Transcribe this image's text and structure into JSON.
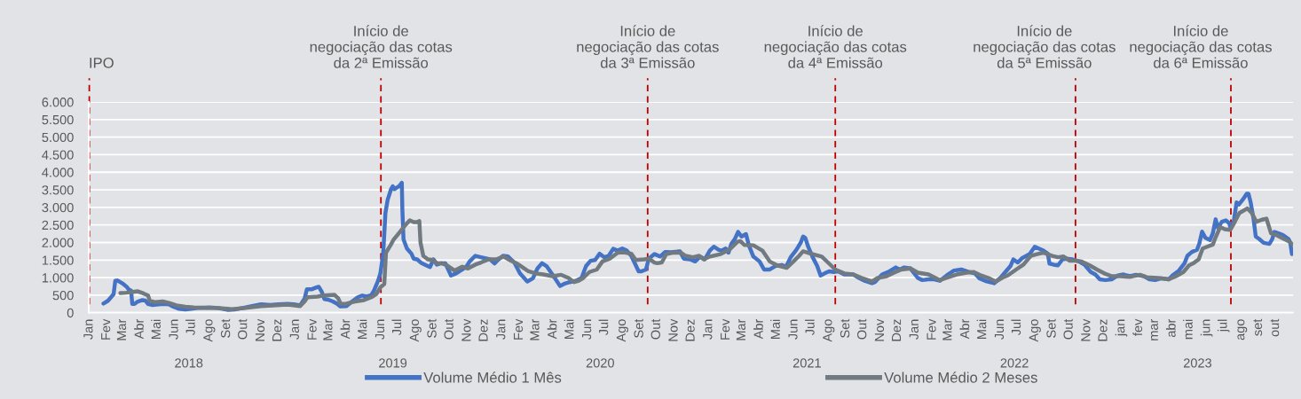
{
  "chart_data": {
    "type": "line",
    "grid": "y",
    "legend": "bottom",
    "line_style": "solid",
    "xlim": [
      "2017-12-31",
      "2023-11-01"
    ],
    "ylim": [
      0,
      6000
    ],
    "yticks": [
      0,
      500,
      {
        "value": 1000,
        "label": "1.000"
      },
      {
        "value": 1500,
        "label": "1.500"
      },
      {
        "value": 2000,
        "label": "2.000"
      },
      {
        "value": 2500,
        "label": "2.500"
      },
      {
        "value": 3000,
        "label": "3.000"
      },
      {
        "value": 3500,
        "label": "3.500"
      },
      {
        "value": 4000,
        "label": "4.000"
      },
      {
        "value": 4500,
        "label": "4.500"
      },
      {
        "value": 5000,
        "label": "5.000"
      },
      {
        "value": 5500,
        "label": "5.500"
      },
      {
        "value": 6000,
        "label": "6.000"
      }
    ],
    "xticks": [
      {
        "value": "2018-01-01",
        "label": "Jan"
      },
      {
        "value": "2018-02-01",
        "label": "Fev"
      },
      {
        "value": "2018-03-01",
        "label": "Mar"
      },
      {
        "value": "2018-04-01",
        "label": "Abr"
      },
      {
        "value": "2018-05-01",
        "label": "Mai"
      },
      {
        "value": "2018-06-01",
        "label": "Jun"
      },
      {
        "value": "2018-07-01",
        "label": "Jul"
      },
      {
        "value": "2018-08-01",
        "label": "Ago"
      },
      {
        "value": "2018-09-01",
        "label": "Set"
      },
      {
        "value": "2018-10-01",
        "label": "Out"
      },
      {
        "value": "2018-11-01",
        "label": "Nov"
      },
      {
        "value": "2018-12-01",
        "label": "Dez"
      },
      {
        "value": "2019-01-01",
        "label": "Jan"
      },
      {
        "value": "2019-02-01",
        "label": "Fev"
      },
      {
        "value": "2019-03-01",
        "label": "Mar"
      },
      {
        "value": "2019-04-01",
        "label": "Abr"
      },
      {
        "value": "2019-05-01",
        "label": "Mai"
      },
      {
        "value": "2019-06-01",
        "label": "Jun"
      },
      {
        "value": "2019-07-01",
        "label": "Jul"
      },
      {
        "value": "2019-08-01",
        "label": "Ago"
      },
      {
        "value": "2019-09-01",
        "label": "Set"
      },
      {
        "value": "2019-10-01",
        "label": "Out"
      },
      {
        "value": "2019-11-01",
        "label": "Nov"
      },
      {
        "value": "2019-12-01",
        "label": "Dez"
      },
      {
        "value": "2020-01-01",
        "label": "Jan"
      },
      {
        "value": "2020-02-01",
        "label": "Fev"
      },
      {
        "value": "2020-03-01",
        "label": "Mar"
      },
      {
        "value": "2020-04-01",
        "label": "Abr"
      },
      {
        "value": "2020-05-01",
        "label": "Mai"
      },
      {
        "value": "2020-06-01",
        "label": "Jun"
      },
      {
        "value": "2020-07-01",
        "label": "Jul"
      },
      {
        "value": "2020-08-01",
        "label": "Ago"
      },
      {
        "value": "2020-09-01",
        "label": "Set"
      },
      {
        "value": "2020-10-01",
        "label": "Out"
      },
      {
        "value": "2020-11-01",
        "label": "Nov"
      },
      {
        "value": "2020-12-01",
        "label": "Dez"
      },
      {
        "value": "2021-01-01",
        "label": "Jan"
      },
      {
        "value": "2021-02-01",
        "label": "Fev"
      },
      {
        "value": "2021-03-01",
        "label": "Mar"
      },
      {
        "value": "2021-04-01",
        "label": "Abr"
      },
      {
        "value": "2021-05-01",
        "label": "Mai"
      },
      {
        "value": "2021-06-01",
        "label": "Jun"
      },
      {
        "value": "2021-07-01",
        "label": "Jul"
      },
      {
        "value": "2021-08-01",
        "label": "Ago"
      },
      {
        "value": "2021-09-01",
        "label": "Set"
      },
      {
        "value": "2021-10-01",
        "label": "Out"
      },
      {
        "value": "2021-11-01",
        "label": "Nov"
      },
      {
        "value": "2021-12-01",
        "label": "Dez"
      },
      {
        "value": "2022-01-01",
        "label": "Jan"
      },
      {
        "value": "2022-02-01",
        "label": "Fev"
      },
      {
        "value": "2022-03-01",
        "label": "Mar"
      },
      {
        "value": "2022-04-01",
        "label": "Abr"
      },
      {
        "value": "2022-05-01",
        "label": "Mai"
      },
      {
        "value": "2022-06-01",
        "label": "Jun"
      },
      {
        "value": "2022-07-01",
        "label": "Jul"
      },
      {
        "value": "2022-08-01",
        "label": "Ago"
      },
      {
        "value": "2022-09-01",
        "label": "Set"
      },
      {
        "value": "2022-10-01",
        "label": "Out"
      },
      {
        "value": "2022-11-01",
        "label": "Nov"
      },
      {
        "value": "2022-12-01",
        "label": "Dez"
      },
      {
        "value": "2023-01-01",
        "label": "jan"
      },
      {
        "value": "2023-02-01",
        "label": "fev"
      },
      {
        "value": "2023-03-01",
        "label": "mar"
      },
      {
        "value": "2023-04-01",
        "label": "abr"
      },
      {
        "value": "2023-05-01",
        "label": "mai"
      },
      {
        "value": "2023-06-01",
        "label": "jun"
      },
      {
        "value": "2023-07-01",
        "label": "jul"
      },
      {
        "value": "2023-08-01",
        "label": "ago"
      },
      {
        "value": "2023-09-01",
        "label": "set"
      },
      {
        "value": "2023-10-01",
        "label": "out"
      }
    ],
    "x2lim": [
      "2017-12-31",
      "2023-11-01"
    ],
    "x2ticks": [
      {
        "value": "2018-06-26",
        "label": "2018"
      },
      {
        "value": "2019-06-22",
        "label": "2019"
      },
      {
        "value": "2020-06-23",
        "label": "2020"
      },
      {
        "value": "2021-06-24",
        "label": "2021"
      },
      {
        "value": "2022-06-26",
        "label": "2022"
      },
      {
        "value": "2023-05-16",
        "label": "2023"
      }
    ],
    "ref_lines": [
      {
        "axis": "x",
        "value": "2018-01-01",
        "label": "IPO",
        "color": "#c00000",
        "line_style": "dashed"
      },
      {
        "axis": "x",
        "value": "2019-06-01",
        "label": "Início de\nnegociação das cotas\nda 2ª Emissão",
        "color": "#c00000",
        "line_style": "dashed"
      },
      {
        "axis": "x",
        "value": "2020-09-15",
        "label": "Início de\nnegociação das cotas\nda 3ª Emissão",
        "color": "#c00000",
        "line_style": "dashed"
      },
      {
        "axis": "x",
        "value": "2021-08-13",
        "label": "Início de\nnegociação das cotas\nda 4ª Emissão",
        "color": "#c00000",
        "line_style": "dashed"
      },
      {
        "axis": "x",
        "value": "2022-10-12",
        "label": "Início de\nnegociação das cotas\nda 5ª Emissão",
        "color": "#c00000",
        "line_style": "dashed"
      },
      {
        "axis": "x",
        "value": "2023-07-14",
        "label": "Início de\nnegociação das cotas\nda 6ª Emissão",
        "color": "#c00000",
        "line_style": "dashed"
      }
    ],
    "series": [
      {
        "name": "Volume Médio 1 Mês",
        "color": "#4472c4",
        "x": [
          "2018-01-26",
          "2018-02-03",
          "2018-02-13",
          "2018-02-16",
          "2018-02-20",
          "2018-03-02",
          "2018-03-08",
          "2018-03-12",
          "2018-03-16",
          "2018-03-18",
          "2018-03-22",
          "2018-03-28",
          "2018-04-05",
          "2018-04-10",
          "2018-04-15",
          "2018-04-23",
          "2018-05-03",
          "2018-05-14",
          "2018-05-22",
          "2018-05-30",
          "2018-06-09",
          "2018-06-20",
          "2018-06-30",
          "2018-07-16",
          "2018-08-01",
          "2018-08-14",
          "2018-09-04",
          "2018-09-15",
          "2018-10-01",
          "2018-10-16",
          "2018-11-01",
          "2018-11-17",
          "2018-12-02",
          "2018-12-18",
          "2018-12-29",
          "2019-01-09",
          "2019-01-17",
          "2019-01-21",
          "2019-01-30",
          "2019-02-07",
          "2019-02-11",
          "2019-02-16",
          "2019-02-21",
          "2019-02-28",
          "2019-03-08",
          "2019-03-16",
          "2019-03-21",
          "2019-04-01",
          "2019-04-11",
          "2019-04-21",
          "2019-04-29",
          "2019-05-07",
          "2019-05-15",
          "2019-05-20",
          "2019-05-27",
          "2019-05-31",
          "2019-06-05",
          "2019-06-09",
          "2019-06-13",
          "2019-06-19",
          "2019-06-22",
          "2019-06-25",
          "2019-06-29",
          "2019-07-03",
          "2019-07-08",
          "2019-07-09",
          "2019-07-11",
          "2019-07-17",
          "2019-07-25",
          "2019-07-29",
          "2019-08-04",
          "2019-08-12",
          "2019-08-20",
          "2019-08-27",
          "2019-09-02",
          "2019-09-08",
          "2019-09-16",
          "2019-09-23",
          "2019-10-03",
          "2019-10-12",
          "2019-10-23",
          "2019-10-31",
          "2019-11-05",
          "2019-11-15",
          "2019-11-25",
          "2019-12-11",
          "2019-12-19",
          "2019-12-25",
          "2020-01-03",
          "2020-01-12",
          "2020-01-23",
          "2020-02-02",
          "2020-02-15",
          "2020-02-25",
          "2020-03-04",
          "2020-03-12",
          "2020-03-20",
          "2020-03-31",
          "2020-04-13",
          "2020-04-20",
          "2020-04-30",
          "2020-05-11",
          "2020-05-21",
          "2020-05-29",
          "2020-06-06",
          "2020-06-14",
          "2020-06-22",
          "2020-06-30",
          "2020-07-08",
          "2020-07-16",
          "2020-07-24",
          "2020-08-01",
          "2020-08-09",
          "2020-08-17",
          "2020-08-25",
          "2020-08-30",
          "2020-09-04",
          "2020-09-12",
          "2020-09-17",
          "2020-09-27",
          "2020-09-30",
          "2020-10-07",
          "2020-10-16",
          "2020-10-26",
          "2020-11-11",
          "2020-11-18",
          "2020-11-29",
          "2020-12-08",
          "2020-12-17",
          "2020-12-25",
          "2021-01-03",
          "2021-01-10",
          "2021-01-19",
          "2021-01-24",
          "2021-01-31",
          "2021-02-05",
          "2021-02-10",
          "2021-02-16",
          "2021-02-22",
          "2021-02-28",
          "2021-03-08",
          "2021-03-13",
          "2021-03-21",
          "2021-04-01",
          "2021-04-09",
          "2021-04-19",
          "2021-04-29",
          "2021-05-10",
          "2021-05-18",
          "2021-05-26",
          "2021-06-05",
          "2021-06-13",
          "2021-06-17",
          "2021-06-21",
          "2021-06-26",
          "2021-07-04",
          "2021-07-12",
          "2021-07-18",
          "2021-07-25",
          "2021-08-02",
          "2021-08-10",
          "2021-08-18",
          "2021-08-29",
          "2021-09-14",
          "2021-09-24",
          "2021-10-04",
          "2021-10-17",
          "2021-10-22",
          "2021-11-04",
          "2021-11-17",
          "2021-11-28",
          "2021-12-05",
          "2021-12-13",
          "2021-12-24",
          "2022-01-06",
          "2022-01-14",
          "2022-01-25",
          "2022-02-04",
          "2022-02-14",
          "2022-02-26",
          "2022-03-11",
          "2022-03-24",
          "2022-04-07",
          "2022-04-17",
          "2022-04-25",
          "2022-05-08",
          "2022-05-21",
          "2022-06-01",
          "2022-06-11",
          "2022-06-19",
          "2022-06-24",
          "2022-07-02",
          "2022-07-10",
          "2022-07-23",
          "2022-08-01",
          "2022-08-08",
          "2022-08-16",
          "2022-08-24",
          "2022-08-27",
          "2022-09-03",
          "2022-09-11",
          "2022-09-19",
          "2022-09-26",
          "2022-10-07",
          "2022-10-18",
          "2022-10-28",
          "2022-11-01",
          "2022-11-08",
          "2022-11-16",
          "2022-11-24",
          "2022-12-04",
          "2022-12-15",
          "2022-12-26",
          "2023-01-05",
          "2023-01-16",
          "2023-01-27",
          "2023-02-10",
          "2023-02-20",
          "2023-03-02",
          "2023-03-13",
          "2023-03-26",
          "2023-04-03",
          "2023-04-13",
          "2023-04-23",
          "2023-04-28",
          "2023-05-06",
          "2023-05-15",
          "2023-05-19",
          "2023-05-24",
          "2023-05-30",
          "2023-06-07",
          "2023-06-12",
          "2023-06-17",
          "2023-06-21",
          "2023-06-28",
          "2023-07-05",
          "2023-07-11",
          "2023-07-13",
          "2023-07-19",
          "2023-07-24",
          "2023-07-28",
          "2023-08-04",
          "2023-08-11",
          "2023-08-14",
          "2023-08-18",
          "2023-08-23",
          "2023-08-27",
          "2023-09-02",
          "2023-09-10",
          "2023-09-20",
          "2023-09-25",
          "2023-09-29",
          "2023-10-06",
          "2023-10-14",
          "2023-10-24",
          "2023-10-27",
          "2023-10-30"
        ],
        "values": [
          260,
          340,
          530,
          910,
          920,
          820,
          740,
          660,
          630,
          250,
          250,
          320,
          360,
          350,
          250,
          220,
          240,
          250,
          240,
          170,
          110,
          90,
          110,
          140,
          150,
          140,
          80,
          90,
          140,
          190,
          240,
          220,
          240,
          250,
          240,
          210,
          400,
          670,
          670,
          720,
          740,
          610,
          390,
          370,
          320,
          250,
          180,
          190,
          320,
          440,
          490,
          460,
          500,
          640,
          910,
          1120,
          1670,
          2840,
          3220,
          3520,
          3600,
          3520,
          3560,
          3600,
          3700,
          2930,
          2090,
          1830,
          1680,
          1540,
          1520,
          1410,
          1350,
          1300,
          1520,
          1370,
          1410,
          1410,
          1060,
          1120,
          1230,
          1330,
          1460,
          1620,
          1580,
          1520,
          1400,
          1500,
          1620,
          1600,
          1430,
          1120,
          890,
          980,
          1260,
          1410,
          1330,
          1080,
          760,
          820,
          870,
          910,
          990,
          1330,
          1480,
          1500,
          1680,
          1580,
          1620,
          1820,
          1770,
          1830,
          1770,
          1620,
          1350,
          1180,
          1180,
          1230,
          1540,
          1670,
          1650,
          1600,
          1730,
          1720,
          1750,
          1540,
          1520,
          1460,
          1600,
          1520,
          1770,
          1880,
          1790,
          1770,
          1830,
          1710,
          1960,
          2090,
          2300,
          2170,
          2240,
          1920,
          1600,
          1460,
          1230,
          1230,
          1330,
          1360,
          1310,
          1580,
          1790,
          2000,
          2170,
          2130,
          1880,
          1580,
          1330,
          1060,
          1120,
          1180,
          1160,
          1180,
          1090,
          1090,
          990,
          910,
          840,
          870,
          1090,
          1180,
          1290,
          1230,
          1290,
          1260,
          990,
          930,
          950,
          950,
          910,
          1060,
          1200,
          1230,
          1160,
          1120,
          980,
          890,
          840,
          990,
          1180,
          1330,
          1520,
          1430,
          1560,
          1670,
          1880,
          1830,
          1770,
          1680,
          1400,
          1370,
          1350,
          1520,
          1540,
          1520,
          1460,
          1370,
          1290,
          1160,
          1090,
          950,
          930,
          950,
          1060,
          1090,
          1040,
          1080,
          1040,
          950,
          930,
          980,
          950,
          1080,
          1200,
          1410,
          1620,
          1730,
          1790,
          1960,
          2310,
          2130,
          2070,
          2260,
          2660,
          2420,
          2590,
          2630,
          2550,
          2440,
          2590,
          3140,
          3080,
          3220,
          3390,
          3390,
          3140,
          2680,
          2170,
          2100,
          1990,
          1960,
          2090,
          2300,
          2260,
          2210,
          2100,
          2000,
          1670
        ]
      },
      {
        "name": "Volume Médio 2 Meses",
        "color": "#707a80",
        "x": [
          "2018-02-25",
          "2018-03-07",
          "2018-03-28",
          "2018-04-07",
          "2018-04-15",
          "2018-04-18",
          "2018-04-28",
          "2018-05-11",
          "2018-05-22",
          "2018-06-04",
          "2018-06-20",
          "2018-07-05",
          "2018-07-26",
          "2018-08-14",
          "2018-09-10",
          "2018-10-01",
          "2018-11-01",
          "2018-12-18",
          "2019-01-09",
          "2019-01-17",
          "2019-01-22",
          "2019-02-09",
          "2019-02-19",
          "2019-03-11",
          "2019-03-17",
          "2019-03-22",
          "2019-04-01",
          "2019-04-16",
          "2019-05-02",
          "2019-05-15",
          "2019-05-24",
          "2019-05-31",
          "2019-06-07",
          "2019-06-10",
          "2019-06-18",
          "2019-06-23",
          "2019-07-03",
          "2019-07-14",
          "2019-07-22",
          "2019-07-29",
          "2019-08-04",
          "2019-08-08",
          "2019-08-10",
          "2019-08-15",
          "2019-08-23",
          "2019-09-01",
          "2019-09-08",
          "2019-09-16",
          "2019-09-26",
          "2019-10-09",
          "2019-10-23",
          "2019-11-02",
          "2019-11-15",
          "2019-11-25",
          "2019-12-09",
          "2019-12-22",
          "2020-01-04",
          "2020-01-17",
          "2020-01-28",
          "2020-02-07",
          "2020-02-17",
          "2020-03-01",
          "2020-03-14",
          "2020-03-31",
          "2020-04-15",
          "2020-04-28",
          "2020-05-08",
          "2020-05-16",
          "2020-05-24",
          "2020-06-04",
          "2020-06-17",
          "2020-06-27",
          "2020-07-10",
          "2020-07-24",
          "2020-08-03",
          "2020-08-17",
          "2020-08-25",
          "2020-09-09",
          "2020-09-17",
          "2020-09-27",
          "2020-10-02",
          "2020-10-10",
          "2020-10-18",
          "2020-10-29",
          "2020-11-13",
          "2020-11-21",
          "2020-12-04",
          "2020-12-15",
          "2020-12-23",
          "2021-01-03",
          "2021-01-22",
          "2021-02-06",
          "2021-02-21",
          "2021-02-26",
          "2021-03-05",
          "2021-03-21",
          "2021-04-06",
          "2021-04-19",
          "2021-05-02",
          "2021-05-19",
          "2021-05-31",
          "2021-06-10",
          "2021-06-17",
          "2021-07-01",
          "2021-07-20",
          "2021-08-02",
          "2021-08-13",
          "2021-08-29",
          "2021-09-14",
          "2021-09-29",
          "2021-10-17",
          "2021-10-27",
          "2021-11-12",
          "2021-11-25",
          "2021-12-08",
          "2021-12-24",
          "2022-01-06",
          "2022-01-25",
          "2022-02-14",
          "2022-03-01",
          "2022-03-16",
          "2022-04-02",
          "2022-04-15",
          "2022-04-28",
          "2022-05-11",
          "2022-05-24",
          "2022-06-06",
          "2022-06-14",
          "2022-06-29",
          "2022-07-12",
          "2022-07-25",
          "2022-08-05",
          "2022-08-16",
          "2022-09-01",
          "2022-09-11",
          "2022-09-21",
          "2022-10-02",
          "2022-10-12",
          "2022-10-23",
          "2022-11-06",
          "2022-11-19",
          "2022-12-02",
          "2022-12-15",
          "2022-12-31",
          "2023-01-16",
          "2023-02-03",
          "2023-02-15",
          "2023-03-07",
          "2023-03-26",
          "2023-04-08",
          "2023-04-21",
          "2023-05-01",
          "2023-05-09",
          "2023-05-18",
          "2023-05-25",
          "2023-06-02",
          "2023-06-12",
          "2023-06-17",
          "2023-06-25",
          "2023-07-03",
          "2023-07-13",
          "2023-07-21",
          "2023-07-29",
          "2023-08-12",
          "2023-08-20",
          "2023-08-28",
          "2023-09-07",
          "2023-09-15",
          "2023-09-23",
          "2023-10-03",
          "2023-10-16",
          "2023-10-24",
          "2023-10-30"
        ],
        "values": [
          560,
          570,
          610,
          550,
          490,
          340,
          300,
          320,
          280,
          210,
          170,
          150,
          140,
          140,
          100,
          130,
          190,
          230,
          190,
          320,
          440,
          460,
          490,
          510,
          420,
          250,
          260,
          320,
          360,
          440,
          530,
          720,
          820,
          1710,
          1920,
          2070,
          2270,
          2490,
          2630,
          2580,
          2580,
          2610,
          2000,
          1620,
          1520,
          1500,
          1410,
          1410,
          1350,
          1200,
          1310,
          1260,
          1370,
          1430,
          1520,
          1520,
          1600,
          1480,
          1400,
          1290,
          1180,
          1120,
          1090,
          1040,
          1080,
          990,
          870,
          910,
          990,
          1160,
          1230,
          1460,
          1540,
          1710,
          1720,
          1680,
          1500,
          1520,
          1540,
          1430,
          1410,
          1430,
          1670,
          1710,
          1710,
          1620,
          1580,
          1620,
          1520,
          1600,
          1670,
          1790,
          2020,
          2040,
          1930,
          1920,
          1770,
          1460,
          1350,
          1280,
          1460,
          1620,
          1750,
          1680,
          1600,
          1400,
          1230,
          1120,
          1090,
          990,
          890,
          990,
          1040,
          1140,
          1230,
          1260,
          1140,
          1090,
          930,
          1010,
          1090,
          1140,
          1160,
          1060,
          990,
          890,
          1010,
          1060,
          1230,
          1370,
          1620,
          1670,
          1710,
          1620,
          1580,
          1600,
          1480,
          1480,
          1460,
          1350,
          1230,
          1120,
          1040,
          1040,
          1020,
          1080,
          1010,
          990,
          950,
          1040,
          1160,
          1350,
          1410,
          1520,
          1830,
          1880,
          1940,
          2150,
          2440,
          2380,
          2360,
          2590,
          2840,
          2970,
          2840,
          2590,
          2650,
          2680,
          2260,
          2210,
          2100,
          2040,
          1960
        ]
      }
    ]
  }
}
